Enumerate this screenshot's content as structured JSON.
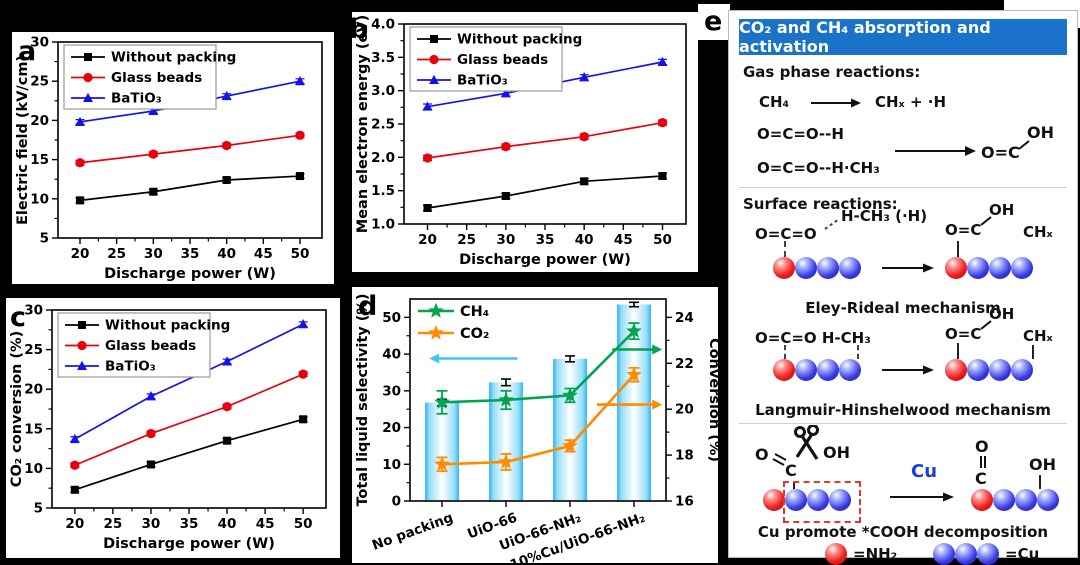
{
  "figure": {
    "panel_labels": {
      "a": "a",
      "b": "b",
      "c": "c",
      "d": "d",
      "e": "e"
    }
  },
  "colors": {
    "series_black": "#000000",
    "series_red": "#e8000d",
    "series_blue": "#1414e8",
    "ch4_green": "#00a550",
    "co2_orange": "#ff8c00",
    "bar_cyan": "#2fb9f0",
    "cyan_arrow": "#3fc6f3",
    "header_blue": "#1a73c8",
    "bead_red": "#e31212",
    "bead_blue": "#2a2ad6",
    "dashed_box_red": "#e8362d",
    "cu_text_blue": "#1a3fd4"
  },
  "chart_data": [
    {
      "id": "a",
      "type": "line",
      "xlabel": "Discharge power (W)",
      "ylabel": "Electric field (kV/cm)",
      "x": [
        20,
        30,
        40,
        50
      ],
      "xlim": [
        17,
        53
      ],
      "ylim": [
        5,
        30
      ],
      "xticks": [
        20,
        25,
        30,
        35,
        40,
        45,
        50
      ],
      "xtick_labels": [
        "20",
        "25",
        "30",
        "35",
        "40",
        "45",
        "50"
      ],
      "yticks": [
        5,
        10,
        15,
        20,
        25,
        30
      ],
      "ytick_labels": [
        "5",
        "10",
        "15",
        "20",
        "25",
        "30"
      ],
      "legend_border": true,
      "series": [
        {
          "name": "Without packing",
          "color": "#000000",
          "marker": "square",
          "values": [
            9.8,
            10.9,
            12.4,
            12.9
          ],
          "err": 0.3
        },
        {
          "name": "Glass beads",
          "color": "#e8000d",
          "marker": "circle",
          "values": [
            14.6,
            15.7,
            16.8,
            18.1
          ],
          "err": 0.3
        },
        {
          "name": "BaTiO₃",
          "color": "#1414e8",
          "marker": "triangle",
          "values": [
            19.8,
            21.2,
            23.1,
            25.0
          ],
          "err": 0.3
        }
      ]
    },
    {
      "id": "b",
      "type": "line",
      "xlabel": "Discharge power (W)",
      "ylabel": "Mean electron energy (eV)",
      "x": [
        20,
        30,
        40,
        50
      ],
      "xlim": [
        17,
        53
      ],
      "ylim": [
        1.0,
        4.0
      ],
      "xticks": [
        20,
        25,
        30,
        35,
        40,
        45,
        50
      ],
      "xtick_labels": [
        "20",
        "25",
        "30",
        "35",
        "40",
        "45",
        "50"
      ],
      "yticks": [
        1.0,
        1.5,
        2.0,
        2.5,
        3.0,
        3.5,
        4.0
      ],
      "ytick_labels": [
        "1.0",
        "1.5",
        "2.0",
        "2.5",
        "3.0",
        "3.5",
        "4.0"
      ],
      "legend_border": true,
      "series": [
        {
          "name": "Without packing",
          "color": "#000000",
          "marker": "square",
          "values": [
            1.24,
            1.42,
            1.64,
            1.72
          ],
          "err": 0.04
        },
        {
          "name": "Glass beads",
          "color": "#e8000d",
          "marker": "circle",
          "values": [
            1.99,
            2.16,
            2.31,
            2.52
          ],
          "err": 0.04
        },
        {
          "name": "BaTiO₃",
          "color": "#1414e8",
          "marker": "triangle",
          "values": [
            2.76,
            2.96,
            3.2,
            3.43
          ],
          "err": 0.04
        }
      ]
    },
    {
      "id": "c",
      "type": "line",
      "xlabel": "Discharge power (W)",
      "ylabel": "CO₂ conversion (%)",
      "x": [
        20,
        30,
        40,
        50
      ],
      "xlim": [
        17,
        53
      ],
      "ylim": [
        5,
        30
      ],
      "xticks": [
        20,
        25,
        30,
        35,
        40,
        45,
        50
      ],
      "xtick_labels": [
        "20",
        "25",
        "30",
        "35",
        "40",
        "45",
        "50"
      ],
      "yticks": [
        5,
        10,
        15,
        20,
        25,
        30
      ],
      "ytick_labels": [
        "5",
        "10",
        "15",
        "20",
        "25",
        "30"
      ],
      "legend_border": true,
      "series": [
        {
          "name": "Without packing",
          "color": "#000000",
          "marker": "square",
          "values": [
            7.3,
            10.5,
            13.5,
            16.2
          ],
          "err": 0.3
        },
        {
          "name": "Glass beads",
          "color": "#e8000d",
          "marker": "circle",
          "values": [
            10.4,
            14.4,
            17.8,
            21.9
          ],
          "err": 0.3
        },
        {
          "name": "BaTiO₃",
          "color": "#1414e8",
          "marker": "triangle",
          "values": [
            13.7,
            19.1,
            23.5,
            28.2
          ],
          "err": 0.3
        }
      ]
    },
    {
      "id": "d",
      "type": "bar-line-combo",
      "categories": [
        "No packing",
        "UiO-66",
        "UiO-66-NH₂",
        "10%Cu/UiO-66-NH₂"
      ],
      "ylabel_left": "Total liquid selectivity (%)",
      "ylabel_right": "Conversion (%)",
      "ylim_left": [
        0,
        55
      ],
      "yticks_left": [
        0,
        10,
        20,
        30,
        40,
        50
      ],
      "ytick_labels_left": [
        "0",
        "10",
        "20",
        "30",
        "40",
        "50"
      ],
      "ylim_right": [
        16,
        24.8
      ],
      "yticks_right": [
        16,
        18,
        20,
        22,
        24
      ],
      "ytick_labels_right": [
        "16",
        "18",
        "20",
        "22",
        "24"
      ],
      "bars": {
        "name": "Total liquid selectivity",
        "values": [
          26.8,
          32.3,
          38.7,
          53.5
        ],
        "err": [
          0.9,
          0.9,
          0.8,
          0.6
        ],
        "edge_color": "#2fb9f0"
      },
      "series": [
        {
          "name": "CH₄",
          "color": "#00a550",
          "marker": "star",
          "axis": "right",
          "values": [
            20.3,
            20.4,
            20.6,
            23.4
          ],
          "err": [
            0.5,
            0.4,
            0.3,
            0.35
          ]
        },
        {
          "name": "CO₂",
          "color": "#ff8c00",
          "marker": "star",
          "axis": "right",
          "values": [
            17.6,
            17.7,
            18.4,
            21.5
          ],
          "err": [
            0.3,
            0.35,
            0.25,
            0.3
          ]
        }
      ],
      "arrows": [
        {
          "color": "#3fc6f3",
          "axis": "left",
          "y": 38.8,
          "x_from": 0.42,
          "x_to": 0.075,
          "dir": "left"
        },
        {
          "color": "#00a550",
          "axis": "right",
          "y": 22.6,
          "x_from": 0.79,
          "x_to": 0.985,
          "dir": "right"
        },
        {
          "color": "#ff8c00",
          "axis": "right",
          "y": 20.2,
          "x_from": 0.73,
          "x_to": 0.985,
          "dir": "right"
        }
      ]
    }
  ],
  "panel_e": {
    "label": "e",
    "title": "CO₂ and CH₄ absorption and activation",
    "gas": {
      "heading": "Gas phase reactions:",
      "r1_left": "CH₄",
      "r1_right": "CHₓ + ·H",
      "r2": "O=C=O--H",
      "r3": "O=C=O--H·CH₃",
      "prod_base": "O=C",
      "prod_oh": "OH"
    },
    "surface": {
      "heading": "Surface reactions:",
      "er": {
        "reactant_main": "O=C=O",
        "reactant_attack": "H-CH₃ (·H)",
        "prod_base": "O=C",
        "prod_oh": "OH",
        "prod_chx": "CHₓ",
        "caption": "Eley-Rideal  mechanism"
      },
      "lh": {
        "reactant": "O=C=O H-CH₃",
        "prod_base": "O=C",
        "prod_oh": "OH",
        "prod_chx": "CHₓ",
        "caption": "Langmuir-Hinshelwood mechanism"
      }
    },
    "cu": {
      "reactant_o": "O",
      "reactant_c": "C",
      "reactant_oh": "OH",
      "arrow_label": "Cu",
      "prod_o": "O",
      "prod_c": "C",
      "prod_oh": "OH",
      "caption": "Cu promote *COOH decomposition",
      "legend_red": "=NH₂",
      "legend_blue": "=Cu"
    }
  }
}
